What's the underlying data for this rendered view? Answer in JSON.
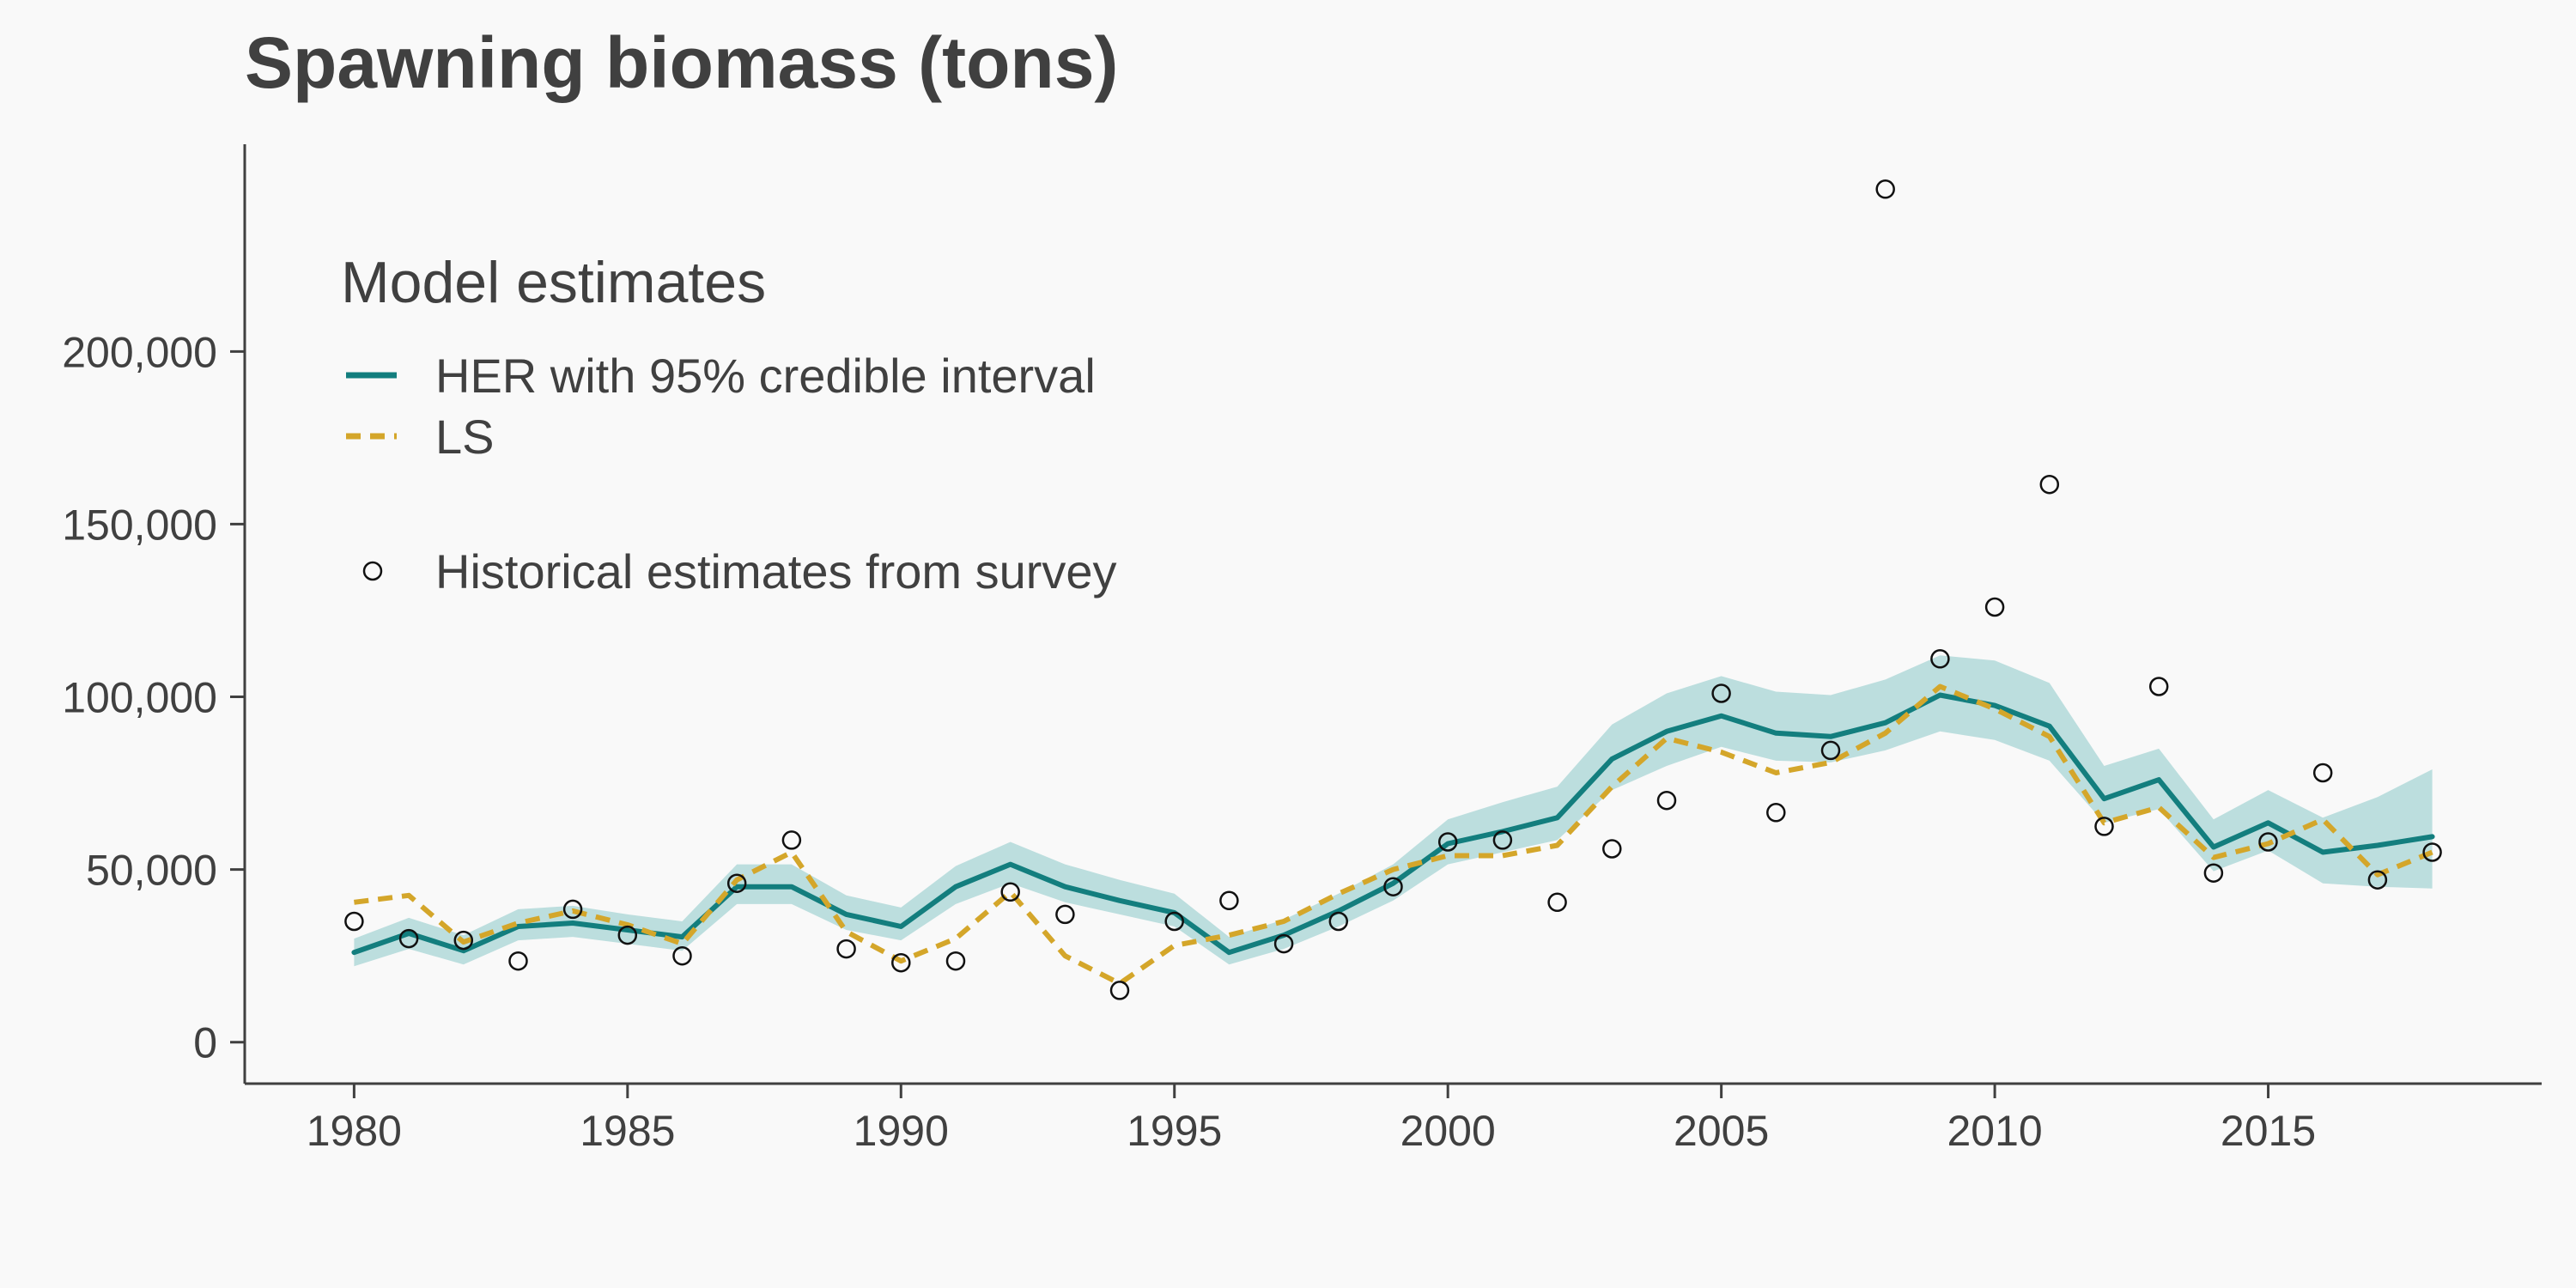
{
  "chart_data": {
    "type": "line",
    "title": "Spawning biomass (tons)",
    "xlabel": "",
    "ylabel": "",
    "xlim": [
      1978,
      2020
    ],
    "ylim": [
      -12000,
      260000
    ],
    "x_ticks": [
      1980,
      1985,
      1990,
      1995,
      2000,
      2005,
      2010,
      2015
    ],
    "x_tick_labels": [
      "1980",
      "1985",
      "1990",
      "1995",
      "2000",
      "2005",
      "2010",
      "2015"
    ],
    "y_ticks": [
      0,
      50000,
      100000,
      150000,
      200000
    ],
    "y_tick_labels": [
      "0",
      "50,000",
      "100,000",
      "150,000",
      "200,000"
    ],
    "grid": false,
    "legend": {
      "title": "Model estimates",
      "position": "top-left",
      "items": [
        {
          "label": "HER with 95% credible interval",
          "style": "solid-line"
        },
        {
          "label": "LS",
          "style": "dashed-line"
        },
        {
          "label": "Historical estimates from survey",
          "style": "open-circle"
        }
      ]
    },
    "colors": {
      "her": "#137e7e",
      "band": "#bcdede",
      "ls": "#d4a62a",
      "points": "#111111",
      "axis": "#404040"
    },
    "x": [
      1980,
      1981,
      1982,
      1983,
      1984,
      1985,
      1986,
      1987,
      1988,
      1989,
      1990,
      1991,
      1992,
      1993,
      1994,
      1995,
      1996,
      1997,
      1998,
      1999,
      2000,
      2001,
      2002,
      2003,
      2004,
      2005,
      2006,
      2007,
      2008,
      2009,
      2010,
      2011,
      2012,
      2013,
      2014,
      2015,
      2016,
      2017,
      2018
    ],
    "series": [
      {
        "name": "HER with 95% credible interval",
        "style": "solid",
        "values": [
          26000,
          31500,
          26500,
          33500,
          34500,
          32500,
          30500,
          45000,
          45000,
          37000,
          33500,
          45000,
          51500,
          45000,
          41000,
          37500,
          26000,
          31000,
          38000,
          46000,
          57500,
          61000,
          65000,
          82000,
          90000,
          94500,
          89500,
          88500,
          92500,
          100500,
          97500,
          91500,
          70500,
          76000,
          56500,
          63500,
          55000,
          57000,
          59500
        ]
      },
      {
        "name": "LS",
        "style": "dashed",
        "values": [
          40500,
          42500,
          29000,
          34500,
          38000,
          34000,
          28500,
          47000,
          55000,
          32000,
          23500,
          30000,
          43500,
          25000,
          17000,
          28000,
          31000,
          35000,
          43000,
          50000,
          54000,
          54000,
          57000,
          74000,
          88000,
          84000,
          78000,
          81000,
          89500,
          103000,
          96500,
          88500,
          63500,
          68000,
          53500,
          57500,
          64500,
          48500,
          55000
        ]
      },
      {
        "name": "Historical estimates from survey",
        "style": "points",
        "values": [
          35000,
          30000,
          29500,
          23500,
          38500,
          31000,
          25000,
          46000,
          58500,
          27000,
          23000,
          23500,
          43500,
          37000,
          15000,
          35000,
          41000,
          28500,
          35000,
          45000,
          58000,
          58500,
          40500,
          56000,
          70000,
          101000,
          66500,
          84500,
          247000,
          111000,
          126000,
          161500,
          62500,
          103000,
          49000,
          58000,
          78000,
          47000,
          55000
        ]
      }
    ],
    "band": {
      "name": "95% credible interval",
      "lower": [
        22000,
        27000,
        22500,
        29500,
        30500,
        28500,
        26500,
        40000,
        40000,
        32500,
        29500,
        40000,
        46000,
        40500,
        37000,
        33500,
        22500,
        27000,
        33500,
        41000,
        51500,
        55000,
        58500,
        73000,
        80000,
        85500,
        81500,
        81000,
        84500,
        90000,
        87500,
        81500,
        63500,
        67500,
        49500,
        55500,
        46000,
        45000,
        44500
      ],
      "upper": [
        30000,
        36000,
        31000,
        38500,
        39500,
        37000,
        35000,
        51500,
        51500,
        42500,
        39000,
        51000,
        58000,
        51500,
        47000,
        43000,
        30500,
        35500,
        43000,
        51500,
        64500,
        69500,
        74000,
        92000,
        101000,
        106000,
        101500,
        100500,
        105000,
        112000,
        110500,
        104000,
        80000,
        85000,
        64500,
        73000,
        65000,
        71000,
        79000
      ]
    }
  }
}
